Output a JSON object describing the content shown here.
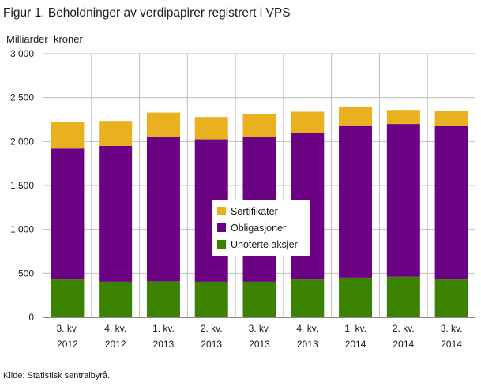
{
  "title": "Figur 1. Beholdninger av verdipapirer registrert i VPS",
  "source": "Kilde: Statistisk sentralbyrå.",
  "chart_data": {
    "type": "bar",
    "stacked": true,
    "title": "Figur 1. Beholdninger av verdipapirer registrert i VPS",
    "ylabel": "Milliarder  kroner",
    "ylim": [
      0,
      3000
    ],
    "yticks": [
      0,
      500,
      1000,
      1500,
      2000,
      2500,
      3000
    ],
    "ytick_labels": [
      "0",
      "500",
      "1 000",
      "1 500",
      "2 000",
      "2 500",
      "3 000"
    ],
    "categories": [
      [
        "3. kv.",
        "2012"
      ],
      [
        "4. kv.",
        "2012"
      ],
      [
        "1. kv.",
        "2013"
      ],
      [
        "2. kv.",
        "2013"
      ],
      [
        "3. kv.",
        "2013"
      ],
      [
        "4. kv.",
        "2013"
      ],
      [
        "1. kv.",
        "2014"
      ],
      [
        "2. kv.",
        "2014"
      ],
      [
        "3. kv.",
        "2014"
      ]
    ],
    "series": [
      {
        "name": "Unoterte aksjer",
        "color": "#3a8200",
        "values": [
          430,
          405,
          410,
          405,
          405,
          430,
          450,
          460,
          430
        ]
      },
      {
        "name": "Obligasjoner",
        "color": "#6b0284",
        "values": [
          1490,
          1545,
          1645,
          1620,
          1645,
          1670,
          1735,
          1740,
          1750
        ]
      },
      {
        "name": "Sertifikater",
        "color": "#e9b11f",
        "values": [
          300,
          285,
          275,
          255,
          265,
          240,
          210,
          160,
          165
        ]
      }
    ],
    "legend_order": [
      "Sertifikater",
      "Obligasjoner",
      "Unoterte aksjer"
    ],
    "legend_position": "center",
    "grid": true,
    "gridline_color": "#bdbdbd",
    "axis_color": "#1a1a1a"
  }
}
